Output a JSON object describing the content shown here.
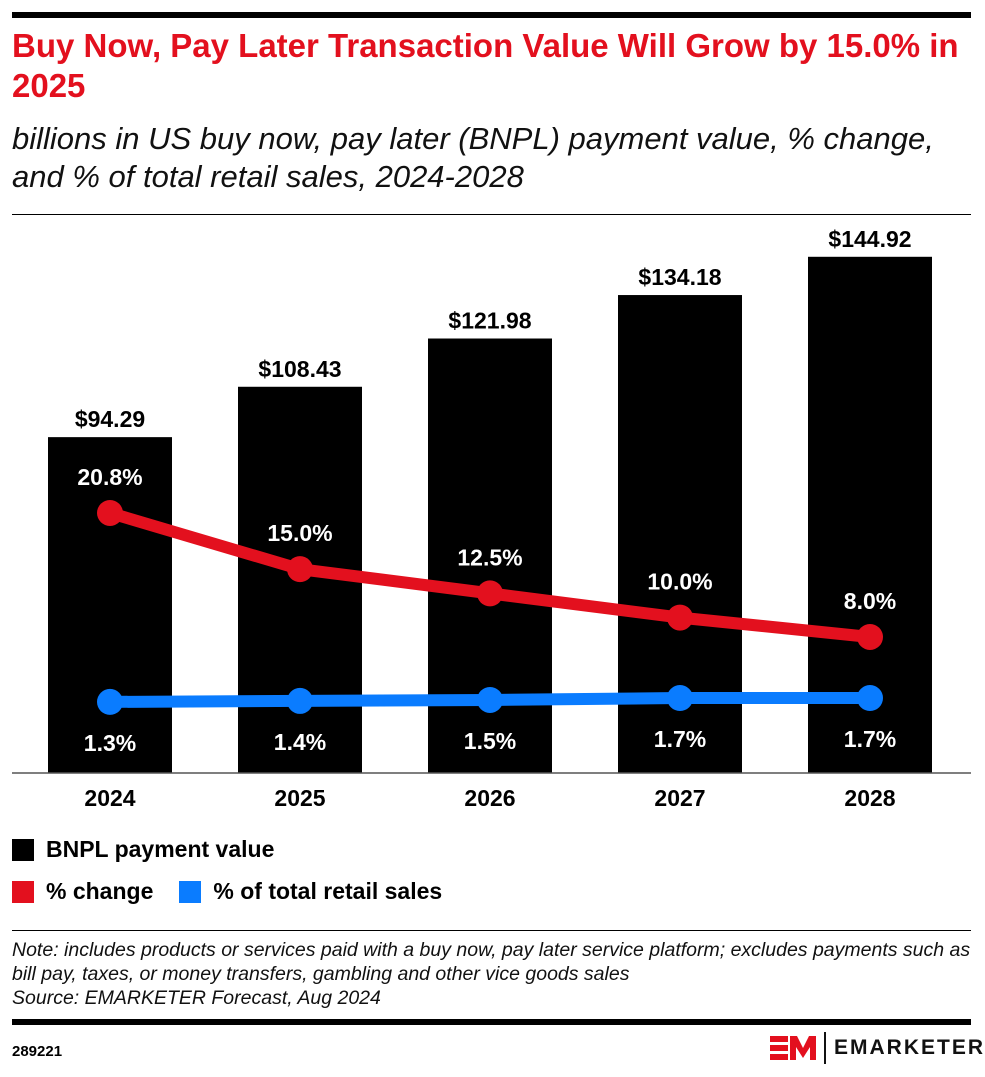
{
  "title": "Buy Now, Pay Later Transaction Value Will Grow by 15.0% in 2025",
  "subtitle": "billions in US buy now, pay later (BNPL) payment value, % change, and % of total retail sales, 2024-2028",
  "chart_data": {
    "type": "bar",
    "categories": [
      "2024",
      "2025",
      "2026",
      "2027",
      "2028"
    ],
    "series": [
      {
        "name": "BNPL payment value",
        "type": "bar",
        "color": "#000000",
        "values": [
          94.29,
          108.43,
          121.98,
          134.18,
          144.92
        ],
        "labels": [
          "$94.29",
          "$108.43",
          "$121.98",
          "$134.18",
          "$144.92"
        ]
      },
      {
        "name": "% change",
        "type": "line",
        "color": "#e3101e",
        "values": [
          20.8,
          15.0,
          12.5,
          10.0,
          8.0
        ],
        "labels": [
          "20.8%",
          "15.0%",
          "12.5%",
          "10.0%",
          "8.0%"
        ]
      },
      {
        "name": "% of total retail sales",
        "type": "line",
        "color": "#0a7cff",
        "values": [
          1.3,
          1.4,
          1.5,
          1.7,
          1.7
        ],
        "labels": [
          "1.3%",
          "1.4%",
          "1.5%",
          "1.7%",
          "1.7%"
        ]
      }
    ],
    "grid": false,
    "legend": "bottom-left"
  },
  "note": "Note: includes products or services paid with a buy now, pay later service platform; excludes payments such as bill pay, taxes, or money transfers, gambling and other vice goods sales",
  "source": "Source: EMARKETER Forecast, Aug 2024",
  "chart_id": "289221",
  "brand": {
    "mark": "EM",
    "name": "EMARKETER",
    "color": "#e3101e"
  }
}
